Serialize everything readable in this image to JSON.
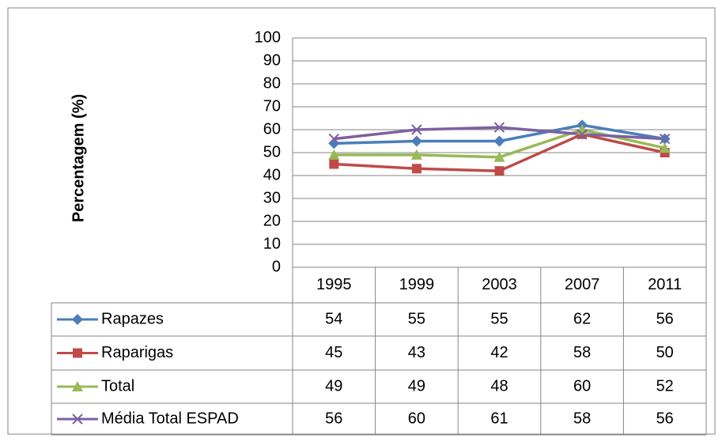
{
  "chart_data": {
    "type": "line",
    "y_label": "Percentagem (%)",
    "categories": [
      "1995",
      "1999",
      "2003",
      "2007",
      "2011"
    ],
    "series": [
      {
        "name": "Rapazes",
        "color": "#4a7ebb",
        "marker": "diamond",
        "values": [
          54,
          55,
          55,
          62,
          56
        ]
      },
      {
        "name": "Raparigas",
        "color": "#be4b48",
        "marker": "square",
        "values": [
          45,
          43,
          42,
          58,
          50
        ]
      },
      {
        "name": "Total",
        "color": "#98b954",
        "marker": "triangle",
        "values": [
          49,
          49,
          48,
          60,
          52
        ]
      },
      {
        "name": "Média Total ESPAD",
        "color": "#7d60a0",
        "marker": "x",
        "values": [
          56,
          60,
          61,
          58,
          56
        ]
      }
    ],
    "ylim": [
      0,
      100
    ],
    "yticks": [
      0,
      10,
      20,
      30,
      40,
      50,
      60,
      70,
      80,
      90,
      100
    ],
    "grid": true,
    "data_table": true
  }
}
